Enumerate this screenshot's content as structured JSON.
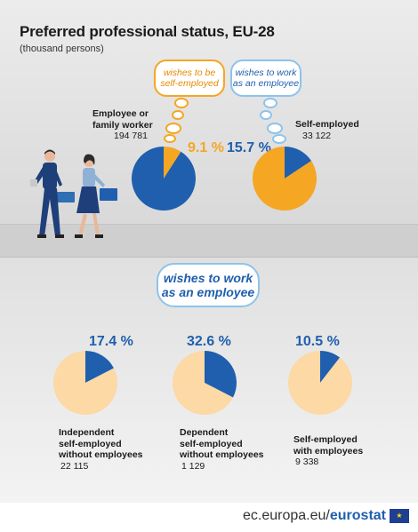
{
  "title": "Preferred professional status, EU-28",
  "subtitle": "(thousand persons)",
  "clouds": {
    "self_employed": "wishes to be self-employed",
    "employee_top": "wishes to work as an employee",
    "employee_bottom": "wishes to work as an employee"
  },
  "colors": {
    "blue": "#1f5fae",
    "orange": "#f5a623",
    "peach": "#fcd9a5"
  },
  "chart_data": [
    {
      "type": "pie",
      "group": "Employee or family worker",
      "total_label": "194 781",
      "pct_label": "9.1 %",
      "cloud": "wishes to be self-employed",
      "slices": [
        {
          "name": "wishes to be self-employed",
          "value": 9.1,
          "color": "#f5a623"
        },
        {
          "name": "other",
          "value": 90.9,
          "color": "#1f5fae"
        }
      ]
    },
    {
      "type": "pie",
      "group": "Self-employed",
      "total_label": "33 122",
      "pct_label": "15.7 %",
      "cloud": "wishes to work as an employee",
      "slices": [
        {
          "name": "wishes to work as an employee",
          "value": 15.7,
          "color": "#1f5fae"
        },
        {
          "name": "other",
          "value": 84.3,
          "color": "#f5a623"
        }
      ]
    },
    {
      "type": "pie",
      "group": "Independent self-employed without employees",
      "total_label": "22 115",
      "pct_label": "17.4 %",
      "slices": [
        {
          "name": "wishes to work as an employee",
          "value": 17.4,
          "color": "#1f5fae"
        },
        {
          "name": "other",
          "value": 82.6,
          "color": "#fcd9a5"
        }
      ]
    },
    {
      "type": "pie",
      "group": "Dependent self-employed without employees",
      "total_label": "1 129",
      "pct_label": "32.6 %",
      "slices": [
        {
          "name": "wishes to work as an employee",
          "value": 32.6,
          "color": "#1f5fae"
        },
        {
          "name": "other",
          "value": 67.4,
          "color": "#fcd9a5"
        }
      ]
    },
    {
      "type": "pie",
      "group": "Self-employed with employees",
      "total_label": "9 338",
      "pct_label": "10.5 %",
      "slices": [
        {
          "name": "wishes to work as an employee",
          "value": 10.5,
          "color": "#1f5fae"
        },
        {
          "name": "other",
          "value": 89.5,
          "color": "#fcd9a5"
        }
      ]
    }
  ],
  "labels": {
    "top_left": {
      "line1": "Employee or",
      "line2": "family worker",
      "value": "194 781"
    },
    "top_right": {
      "line1": "Self-employed",
      "value": "33 122"
    },
    "bottom_1": {
      "line1": "Independent",
      "line2": "self-employed",
      "line3": "without employees",
      "value": "22 115"
    },
    "bottom_2": {
      "line1": "Dependent",
      "line2": "self-employed",
      "line3": "without employees",
      "value": "1 129"
    },
    "bottom_3": {
      "line1": "Self-employed",
      "line2": "with employees",
      "value": "9 338"
    }
  },
  "pcts": [
    "9.1 %",
    "15.7 %",
    "17.4 %",
    "32.6 %",
    "10.5 %"
  ],
  "footer": {
    "domain": "ec.europa.eu/",
    "brand": "eurostat"
  }
}
